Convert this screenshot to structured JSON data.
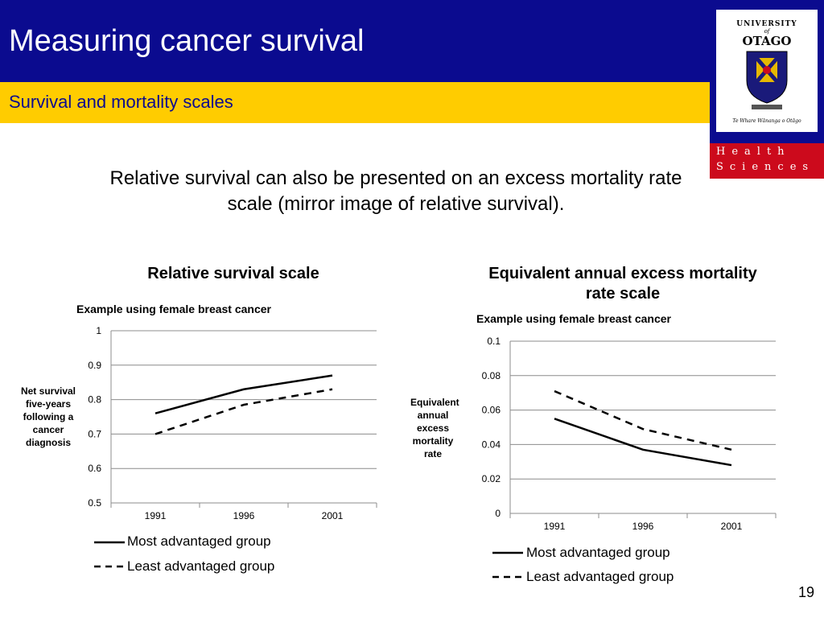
{
  "slide": {
    "title": "Measuring cancer survival",
    "subtitle": "Survival and mortality scales",
    "intro": "Relative survival can also be presented on an excess mortality rate scale (mirror image of relative survival).",
    "page_number": "19"
  },
  "logo": {
    "line1": "UNIVERSITY",
    "of": "of",
    "name": "OTAGO",
    "motto": "Te Whare Wānanga o Otāgo",
    "health_line1": "Health",
    "health_line2": "Sciences"
  },
  "colors": {
    "header": "#0b0b8f",
    "subbar": "#ffcc00",
    "health": "#cc0a1c"
  },
  "chart_data": [
    {
      "type": "line",
      "heading": "Relative survival scale",
      "title": "Example using female breast cancer",
      "xlabel": "",
      "ylabel": "Net survival five-years following a cancer diagnosis",
      "categories": [
        "1991",
        "1996",
        "2001"
      ],
      "y_ticks": [
        "0.5",
        "0.6",
        "0.7",
        "0.8",
        "0.9",
        "1"
      ],
      "ylim": [
        0.5,
        1
      ],
      "grid": true,
      "series": [
        {
          "name": "Most advantaged group",
          "style": "solid",
          "values": [
            0.76,
            0.83,
            0.87
          ]
        },
        {
          "name": "Least advantaged group",
          "style": "dashed",
          "values": [
            0.7,
            0.785,
            0.83
          ]
        }
      ]
    },
    {
      "type": "line",
      "heading": "Equivalent annual excess mortality rate scale",
      "title": "Example using female breast cancer",
      "xlabel": "",
      "ylabel": "Equivalent annual excess mortality rate",
      "categories": [
        "1991",
        "1996",
        "2001"
      ],
      "y_ticks": [
        "0",
        "0.02",
        "0.04",
        "0.06",
        "0.08",
        "0.1"
      ],
      "ylim": [
        0,
        0.1
      ],
      "grid": true,
      "series": [
        {
          "name": "Most advantaged group",
          "style": "solid",
          "values": [
            0.055,
            0.037,
            0.028
          ]
        },
        {
          "name": "Least advantaged group",
          "style": "dashed",
          "values": [
            0.071,
            0.049,
            0.037
          ]
        }
      ]
    }
  ]
}
